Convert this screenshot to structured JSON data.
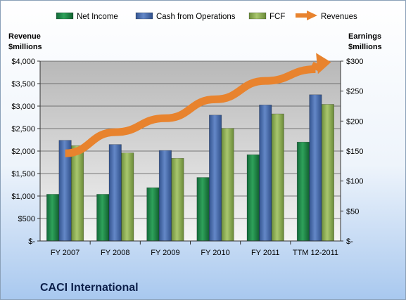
{
  "chart_data": {
    "type": "bar",
    "title": "CACI International",
    "categories": [
      "FY 2007",
      "FY 2008",
      "FY 2009",
      "FY 2010",
      "FY 2011",
      "TTM 12-2011"
    ],
    "y_left": {
      "label_line1": "Revenue",
      "label_line2": "$millions",
      "ylim": [
        0,
        4000
      ],
      "ticks": [
        0,
        500,
        1000,
        1500,
        2000,
        2500,
        3000,
        3500,
        4000
      ],
      "tick_labels": [
        "$-",
        "$500",
        "$1,000",
        "$1,500",
        "$2,000",
        "$2,500",
        "$3,000",
        "$3,500",
        "$4,000"
      ]
    },
    "y_right": {
      "label_line1": "Earnings",
      "label_line2": "$millions",
      "ylim": [
        0,
        300
      ],
      "ticks": [
        0,
        50,
        100,
        150,
        200,
        250,
        300
      ],
      "tick_labels": [
        "$-",
        "$50",
        "$100",
        "$150",
        "$200",
        "$250",
        "$300"
      ]
    },
    "series": [
      {
        "name": "Net Income",
        "axis": "right",
        "values": [
          78,
          78,
          89,
          106,
          144,
          165
        ],
        "color": "#1f8a47"
      },
      {
        "name": "Cash from Operations",
        "axis": "right",
        "values": [
          168,
          161,
          151,
          210,
          227,
          244
        ],
        "color": "#4a6fb0"
      },
      {
        "name": "FCF",
        "axis": "right",
        "values": [
          159,
          147,
          138,
          188,
          212,
          228
        ],
        "color": "#8cae53"
      }
    ],
    "revenues": {
      "name": "Revenues",
      "axis": "left",
      "values": [
        1950,
        2420,
        2730,
        3150,
        3560,
        3820
      ],
      "color": "#e8832e"
    },
    "grid": true,
    "legend": "top"
  }
}
